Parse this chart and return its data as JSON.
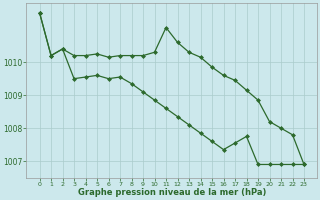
{
  "line1_x": [
    0,
    1,
    2,
    3,
    4,
    5,
    6,
    7,
    8,
    9,
    10,
    11,
    12,
    13,
    14,
    15,
    16,
    17,
    18,
    19,
    20,
    21,
    22,
    23
  ],
  "line1_y": [
    1011.5,
    1010.2,
    1010.4,
    1010.2,
    1010.2,
    1010.25,
    1010.15,
    1010.2,
    1010.2,
    1010.2,
    1010.3,
    1011.05,
    1010.6,
    1010.3,
    1010.15,
    1009.85,
    1009.6,
    1009.45,
    1009.15,
    1008.85,
    1008.2,
    1008.0,
    1007.8,
    1006.9
  ],
  "line2_x": [
    0,
    1,
    2,
    3,
    4,
    5,
    6,
    7,
    8,
    9,
    10,
    11,
    12,
    13,
    14,
    15,
    16,
    17,
    18,
    19,
    20,
    21,
    22,
    23
  ],
  "line2_y": [
    1011.5,
    1010.2,
    1010.4,
    1009.5,
    1009.55,
    1009.6,
    1009.5,
    1009.55,
    1009.35,
    1009.1,
    1008.85,
    1008.6,
    1008.35,
    1008.1,
    1007.85,
    1007.6,
    1007.35,
    1007.55,
    1007.75,
    1006.9,
    1006.9,
    1006.9,
    1006.9,
    1006.9
  ],
  "line_color": "#2d6a2d",
  "bg_color": "#cce8ec",
  "grid_color": "#aacccc",
  "xlabel": "Graphe pression niveau de la mer (hPa)",
  "ylim": [
    1006.5,
    1011.8
  ],
  "yticks": [
    1007,
    1008,
    1009,
    1010
  ],
  "xticks": [
    0,
    1,
    2,
    3,
    4,
    5,
    6,
    7,
    8,
    9,
    10,
    11,
    12,
    13,
    14,
    15,
    16,
    17,
    18,
    19,
    20,
    21,
    22,
    23
  ],
  "marker": "D",
  "markersize": 2.0,
  "linewidth": 0.9
}
